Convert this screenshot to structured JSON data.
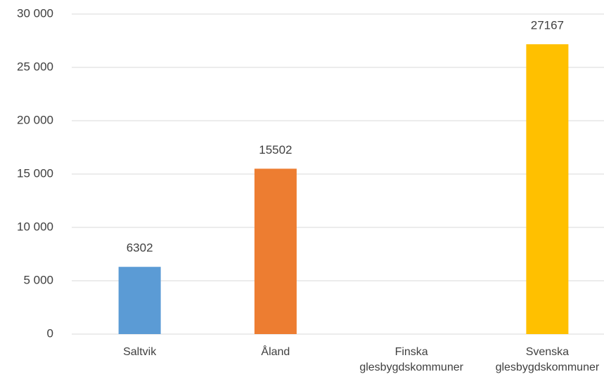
{
  "chart_data": {
    "type": "bar",
    "categories": [
      "Saltvik",
      "Åland",
      "Finska glesbygdskommuner",
      "Svenska glesbygdskommuner"
    ],
    "values": [
      6302,
      15502,
      null,
      27167
    ],
    "colors": [
      "#5b9bd5",
      "#ed7d31",
      null,
      "#ffc000"
    ],
    "ylim": [
      0,
      30000
    ],
    "yticks": [
      0,
      {
        "value": 5000,
        "label": "5 000"
      },
      {
        "value": 10000,
        "label": "10 000"
      },
      {
        "value": 15000,
        "label": "15 000"
      },
      {
        "value": 20000,
        "label": "20 000"
      },
      {
        "value": 25000,
        "label": "25 000"
      },
      {
        "value": 30000,
        "label": "30 000"
      }
    ],
    "grid": true
  }
}
